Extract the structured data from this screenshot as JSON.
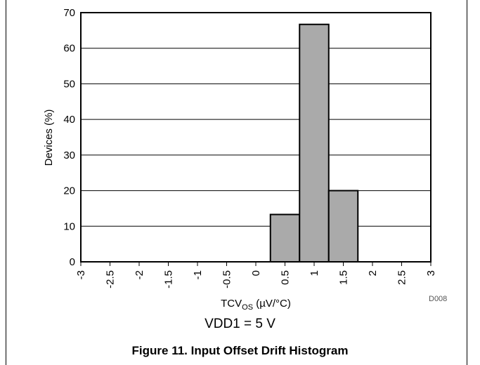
{
  "chart_data": {
    "type": "bar",
    "xlabel_main": "TCV",
    "xlabel_sub": "OS",
    "xlabel_unit": " (µV/°C)",
    "ylabel": "Devices (%)",
    "xticks": [
      "-3",
      "-2.5",
      "-2",
      "-1.5",
      "-1",
      "-0.5",
      "0",
      "0.5",
      "1",
      "1.5",
      "2",
      "2.5",
      "3"
    ],
    "yticks": [
      "0",
      "10",
      "20",
      "30",
      "40",
      "50",
      "60",
      "70"
    ],
    "xlim": [
      -3,
      3
    ],
    "ylim": [
      0,
      70
    ],
    "grid": true,
    "bins": [
      {
        "x0": 0.25,
        "x1": 0.75,
        "value": 13.3
      },
      {
        "x0": 0.75,
        "x1": 1.25,
        "value": 66.7
      },
      {
        "x0": 1.25,
        "x1": 1.75,
        "value": 20.0
      }
    ],
    "bar_color": "#aaaaaa"
  },
  "condition": "VDD1 = 5 V",
  "caption": "Figure 11. Input Offset Drift Histogram",
  "figure_code": "D008"
}
